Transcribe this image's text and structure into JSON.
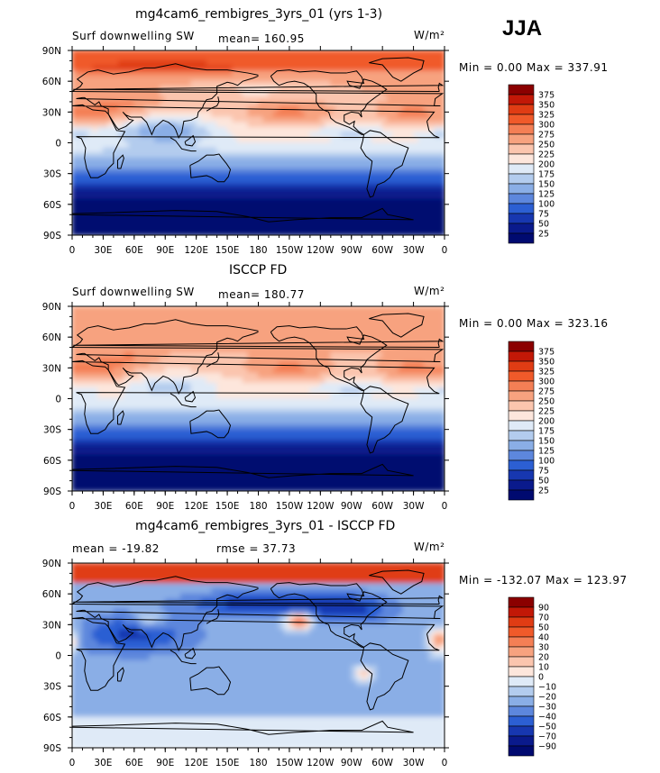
{
  "season": "JJA",
  "lat_labels": [
    "90N",
    "60N",
    "30N",
    "0",
    "30S",
    "60S",
    "90S"
  ],
  "lon_labels": [
    "0",
    "30E",
    "60E",
    "90E",
    "120E",
    "150E",
    "180",
    "150W",
    "120W",
    "90W",
    "60W",
    "30W",
    "0"
  ],
  "panels": [
    {
      "id": "model",
      "title": "mg4cam6_rembigres_3yrs_01 (yrs 1-3)",
      "left_label": "Surf downwelling SW",
      "stat_label": "mean=  160.95",
      "stat2_label": "",
      "units": "W/m²",
      "range_label": "Min =    0.00 Max =  337.91",
      "colorbar": {
        "levels": [
          "375",
          "350",
          "325",
          "300",
          "275",
          "250",
          "225",
          "200",
          "175",
          "150",
          "125",
          "100",
          "75",
          "50",
          "25"
        ],
        "colors": [
          "#8b0000",
          "#c21807",
          "#e03c14",
          "#f05a2a",
          "#f47f55",
          "#f7a27f",
          "#fbc5ae",
          "#fde6dc",
          "#dfeaf7",
          "#b3ccee",
          "#8aaee6",
          "#5d87dd",
          "#2c5fd3",
          "#1737b0",
          "#0a1a8c",
          "#000a70"
        ]
      },
      "scale": "sw"
    },
    {
      "id": "obs",
      "title": "ISCCP FD",
      "left_label": "Surf downwelling SW",
      "stat_label": "mean=  180.77",
      "stat2_label": "",
      "units": "W/m²",
      "range_label": "Min =    0.00 Max =  323.16",
      "colorbar": {
        "levels": [
          "375",
          "350",
          "325",
          "300",
          "275",
          "250",
          "225",
          "200",
          "175",
          "150",
          "125",
          "100",
          "75",
          "50",
          "25"
        ],
        "colors": [
          "#8b0000",
          "#c21807",
          "#e03c14",
          "#f05a2a",
          "#f47f55",
          "#f7a27f",
          "#fbc5ae",
          "#fde6dc",
          "#dfeaf7",
          "#b3ccee",
          "#8aaee6",
          "#5d87dd",
          "#2c5fd3",
          "#1737b0",
          "#0a1a8c",
          "#000a70"
        ]
      },
      "scale": "sw"
    },
    {
      "id": "diff",
      "title": "mg4cam6_rembigres_3yrs_01 - ISCCP FD",
      "left_label": "mean = -19.82",
      "stat_label": "rmse =  37.73",
      "stat2_label": "",
      "units": "W/m²",
      "range_label": "Min = -132.07 Max =  123.97",
      "colorbar": {
        "levels": [
          "90",
          "70",
          "50",
          "40",
          "30",
          "20",
          "10",
          "0",
          "−10",
          "−20",
          "−30",
          "−40",
          "−50",
          "−70",
          "−90"
        ],
        "colors": [
          "#8b0000",
          "#c21807",
          "#e03c14",
          "#f05a2a",
          "#f47f55",
          "#f7a27f",
          "#fbc5ae",
          "#fde6dc",
          "#dfeaf7",
          "#b3ccee",
          "#8aaee6",
          "#5d87dd",
          "#2c5fd3",
          "#1737b0",
          "#0a1a8c",
          "#000a70"
        ]
      },
      "scale": "diff"
    }
  ]
}
